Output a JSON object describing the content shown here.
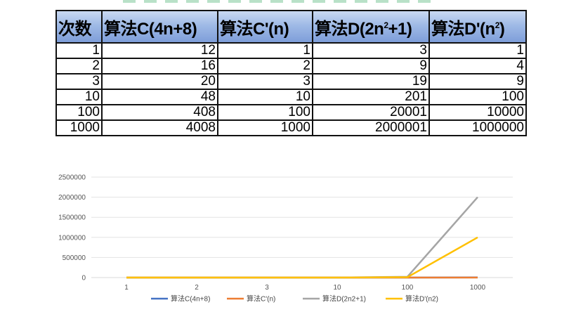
{
  "table": {
    "headers": [
      {
        "main": "次数",
        "sup": "",
        "tail": ""
      },
      {
        "main": "算法C(4n+8)",
        "sup": "",
        "tail": ""
      },
      {
        "main": "算法C'(n)",
        "sup": "",
        "tail": ""
      },
      {
        "main": "算法D(2n",
        "sup": "2",
        "tail": "+1)"
      },
      {
        "main": "算法D'(n",
        "sup": "2",
        "tail": ")"
      }
    ],
    "rows": [
      [
        "1",
        "12",
        "1",
        "3",
        "1"
      ],
      [
        "2",
        "16",
        "2",
        "9",
        "4"
      ],
      [
        "3",
        "20",
        "3",
        "19",
        "9"
      ],
      [
        "10",
        "48",
        "10",
        "201",
        "100"
      ],
      [
        "100",
        "408",
        "100",
        "20001",
        "10000"
      ],
      [
        "1000",
        "4008",
        "1000",
        "2000001",
        "1000000"
      ]
    ]
  },
  "chart_data": {
    "type": "line",
    "categories": [
      "1",
      "2",
      "3",
      "10",
      "100",
      "1000"
    ],
    "series": [
      {
        "name": "算法C(4n+8)",
        "color": "#4472c4",
        "values": [
          12,
          16,
          20,
          48,
          408,
          4008
        ]
      },
      {
        "name": "算法C'(n)",
        "color": "#ed7d31",
        "values": [
          1,
          2,
          3,
          10,
          100,
          1000
        ]
      },
      {
        "name": "算法D(2n2+1)",
        "color": "#a5a5a5",
        "values": [
          3,
          9,
          19,
          201,
          20001,
          2000001
        ]
      },
      {
        "name": "算法D'(n2)",
        "color": "#ffc000",
        "values": [
          1,
          4,
          9,
          100,
          10000,
          1000000
        ]
      }
    ],
    "yticks": [
      "0",
      "500000",
      "1000000",
      "1500000",
      "2000000",
      "2500000"
    ],
    "ylim": [
      0,
      2500000
    ],
    "grid": true,
    "legend": "bottom"
  }
}
